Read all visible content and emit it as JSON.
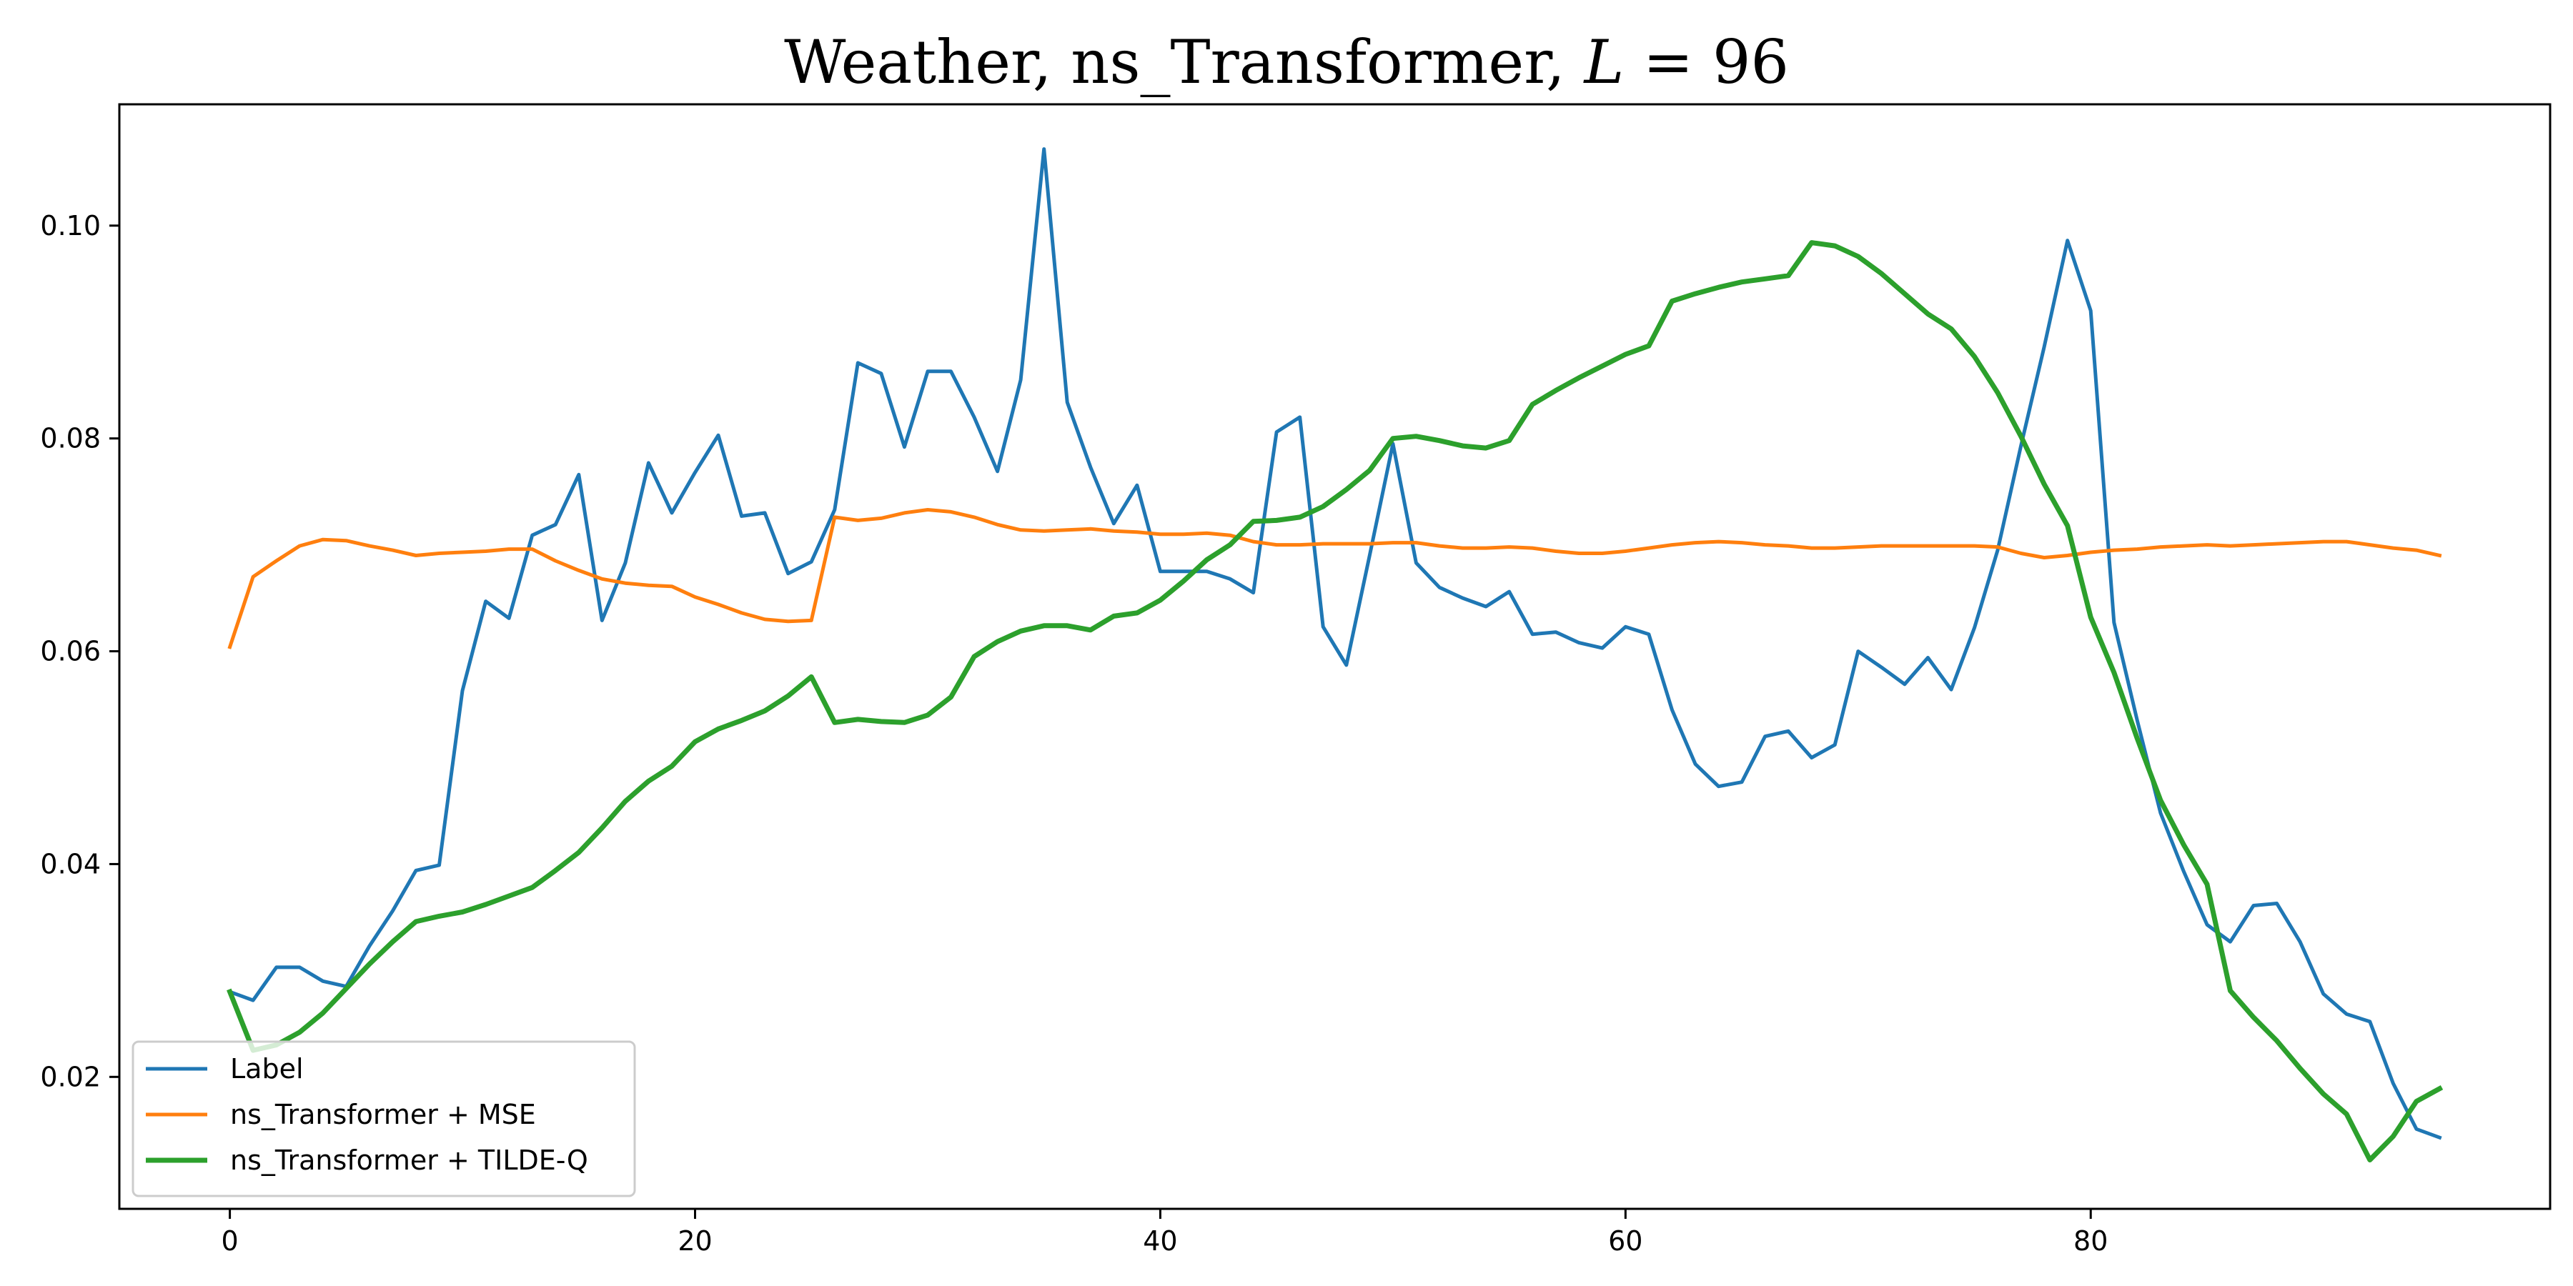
{
  "chart_data": {
    "type": "line",
    "title": "Weather, ns_Transformer, L = 96",
    "title_parts": {
      "prefix": "Weather, ns_Transformer, ",
      "var": "L",
      "suffix": " = 96"
    },
    "xlabel": "",
    "ylabel": "",
    "xlim": [
      -4.75,
      99.75
    ],
    "ylim": [
      0.0076,
      0.1114
    ],
    "xticks": [
      0,
      20,
      40,
      60,
      80
    ],
    "yticks": [
      0.02,
      0.04,
      0.06,
      0.08,
      0.1
    ],
    "ytick_labels": [
      "0.02",
      "0.04",
      "0.06",
      "0.08",
      "0.10"
    ],
    "grid": false,
    "legend_position": "lower-left",
    "series": [
      {
        "name": "Label",
        "color": "#1f77b4",
        "values": [
          0.028,
          0.0272,
          0.0303,
          0.0303,
          0.029,
          0.0285,
          0.0323,
          0.0356,
          0.0394,
          0.0399,
          0.0563,
          0.0647,
          0.0631,
          0.0709,
          0.0719,
          0.0766,
          0.0629,
          0.0683,
          0.0777,
          0.073,
          0.0768,
          0.0803,
          0.0727,
          0.073,
          0.0673,
          0.0684,
          0.0733,
          0.0871,
          0.0861,
          0.0792,
          0.0863,
          0.0863,
          0.082,
          0.0769,
          0.0855,
          0.1072,
          0.0834,
          0.0773,
          0.072,
          0.0756,
          0.0675,
          0.0675,
          0.0675,
          0.0668,
          0.0655,
          0.0806,
          0.082,
          0.0623,
          0.0587,
          0.069,
          0.0795,
          0.0683,
          0.066,
          0.065,
          0.0642,
          0.0656,
          0.0616,
          0.0618,
          0.0608,
          0.0603,
          0.0623,
          0.0616,
          0.0545,
          0.0494,
          0.0473,
          0.0477,
          0.052,
          0.0525,
          0.05,
          0.0512,
          0.06,
          0.0585,
          0.0569,
          0.0594,
          0.0564,
          0.0622,
          0.0695,
          0.0793,
          0.0886,
          0.0986,
          0.092,
          0.0627,
          0.0535,
          0.0448,
          0.0393,
          0.0343,
          0.0327,
          0.0361,
          0.0363,
          0.0327,
          0.0278,
          0.0259,
          0.0252,
          0.0194,
          0.0151,
          0.0143
        ]
      },
      {
        "name": "ns_Transformer + MSE",
        "color": "#ff7f0e",
        "values": [
          0.0604,
          0.067,
          0.0685,
          0.0699,
          0.0705,
          0.0704,
          0.0699,
          0.0695,
          0.069,
          0.0692,
          0.0693,
          0.0694,
          0.0696,
          0.0696,
          0.0685,
          0.0676,
          0.0668,
          0.0664,
          0.0662,
          0.0661,
          0.0651,
          0.0644,
          0.0636,
          0.063,
          0.0628,
          0.0629,
          0.0726,
          0.0723,
          0.0725,
          0.073,
          0.0733,
          0.0731,
          0.0726,
          0.0719,
          0.0714,
          0.0713,
          0.0714,
          0.0715,
          0.0713,
          0.0712,
          0.071,
          0.071,
          0.0711,
          0.0709,
          0.0703,
          0.07,
          0.07,
          0.0701,
          0.0701,
          0.0701,
          0.0702,
          0.0702,
          0.0699,
          0.0697,
          0.0697,
          0.0698,
          0.0697,
          0.0694,
          0.0692,
          0.0692,
          0.0694,
          0.0697,
          0.07,
          0.0702,
          0.0703,
          0.0702,
          0.07,
          0.0699,
          0.0697,
          0.0697,
          0.0698,
          0.0699,
          0.0699,
          0.0699,
          0.0699,
          0.0699,
          0.0698,
          0.0692,
          0.0688,
          0.069,
          0.0693,
          0.0695,
          0.0696,
          0.0698,
          0.0699,
          0.07,
          0.0699,
          0.07,
          0.0701,
          0.0702,
          0.0703,
          0.0703,
          0.07,
          0.0697,
          0.0695,
          0.069
        ]
      },
      {
        "name": "ns_Transformer + TILDE-Q",
        "color": "#2ca02c",
        "values": [
          0.028,
          0.0225,
          0.023,
          0.0242,
          0.026,
          0.0283,
          0.0306,
          0.0327,
          0.0346,
          0.0351,
          0.0355,
          0.0362,
          0.037,
          0.0378,
          0.0394,
          0.0411,
          0.0434,
          0.0459,
          0.0478,
          0.0492,
          0.0515,
          0.0527,
          0.0535,
          0.0544,
          0.0558,
          0.0576,
          0.0533,
          0.0536,
          0.0534,
          0.0533,
          0.054,
          0.0557,
          0.0595,
          0.0609,
          0.0619,
          0.0624,
          0.0624,
          0.062,
          0.0633,
          0.0636,
          0.0648,
          0.0666,
          0.0686,
          0.07,
          0.0722,
          0.0723,
          0.0726,
          0.0736,
          0.0752,
          0.077,
          0.08,
          0.0802,
          0.0798,
          0.0793,
          0.0791,
          0.0798,
          0.0832,
          0.0845,
          0.0857,
          0.0868,
          0.0879,
          0.0887,
          0.0929,
          0.0936,
          0.0942,
          0.0947,
          0.095,
          0.0953,
          0.0984,
          0.0981,
          0.0971,
          0.0955,
          0.0936,
          0.0917,
          0.0903,
          0.0877,
          0.0843,
          0.0802,
          0.0757,
          0.0718,
          0.0632,
          0.058,
          0.0518,
          0.046,
          0.0418,
          0.0381,
          0.0281,
          0.0256,
          0.0234,
          0.0208,
          0.0184,
          0.0165,
          0.0122,
          0.0144,
          0.0177,
          0.0189
        ]
      }
    ]
  }
}
